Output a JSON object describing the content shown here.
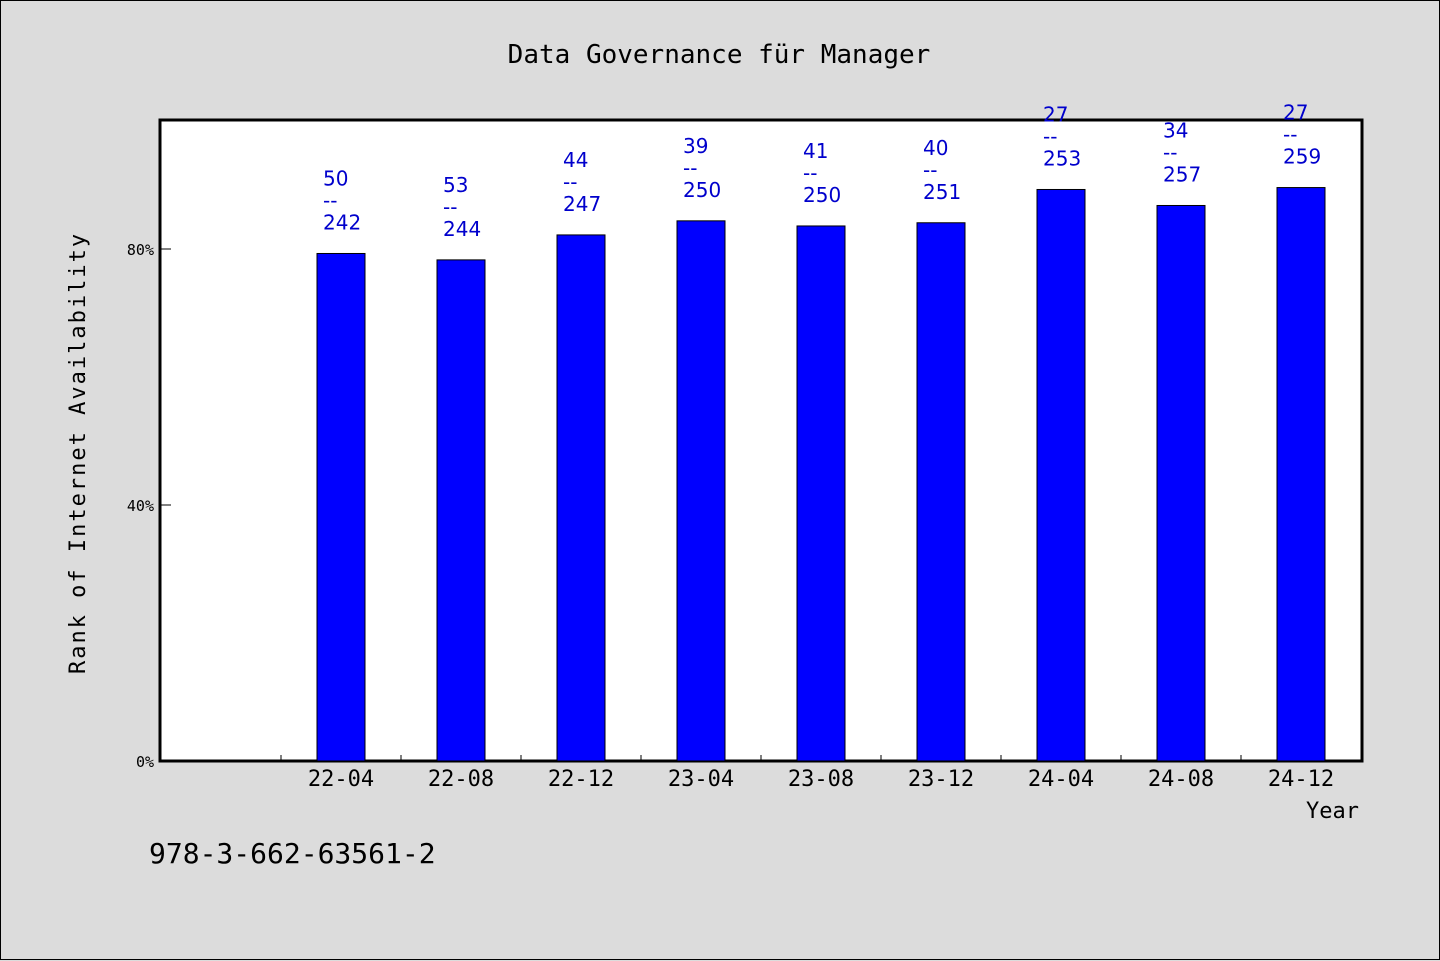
{
  "chart_data": {
    "type": "bar",
    "title": "Data Governance für Manager",
    "xlabel": "Year",
    "ylabel": "Rank of Internet Availability",
    "categories": [
      "22-04",
      "22-08",
      "22-12",
      "23-04",
      "23-08",
      "23-12",
      "24-04",
      "24-08",
      "24-12"
    ],
    "values": [
      79.3,
      78.3,
      82.2,
      84.4,
      83.6,
      84.1,
      89.3,
      86.8,
      89.6
    ],
    "bar_labels": [
      {
        "top": "50",
        "bottom": "242"
      },
      {
        "top": "53",
        "bottom": "244"
      },
      {
        "top": "44",
        "bottom": "247"
      },
      {
        "top": "39",
        "bottom": "250"
      },
      {
        "top": "41",
        "bottom": "250"
      },
      {
        "top": "40",
        "bottom": "251"
      },
      {
        "top": "27",
        "bottom": "253"
      },
      {
        "top": "34",
        "bottom": "257"
      },
      {
        "top": "27",
        "bottom": "259"
      }
    ],
    "label_separator": "--",
    "yticks": [
      0,
      40,
      80
    ],
    "ytick_labels": [
      "0%",
      "40%",
      "80%"
    ],
    "ylim": [
      0,
      100
    ],
    "grid": false,
    "legend": "none",
    "colors": {
      "bar": "#0000ff",
      "label": "#0000cc",
      "plot_bg": "#ffffff",
      "page_bg": "#dcdcdc"
    }
  },
  "footer": {
    "isbn": "978-3-662-63561-2"
  }
}
